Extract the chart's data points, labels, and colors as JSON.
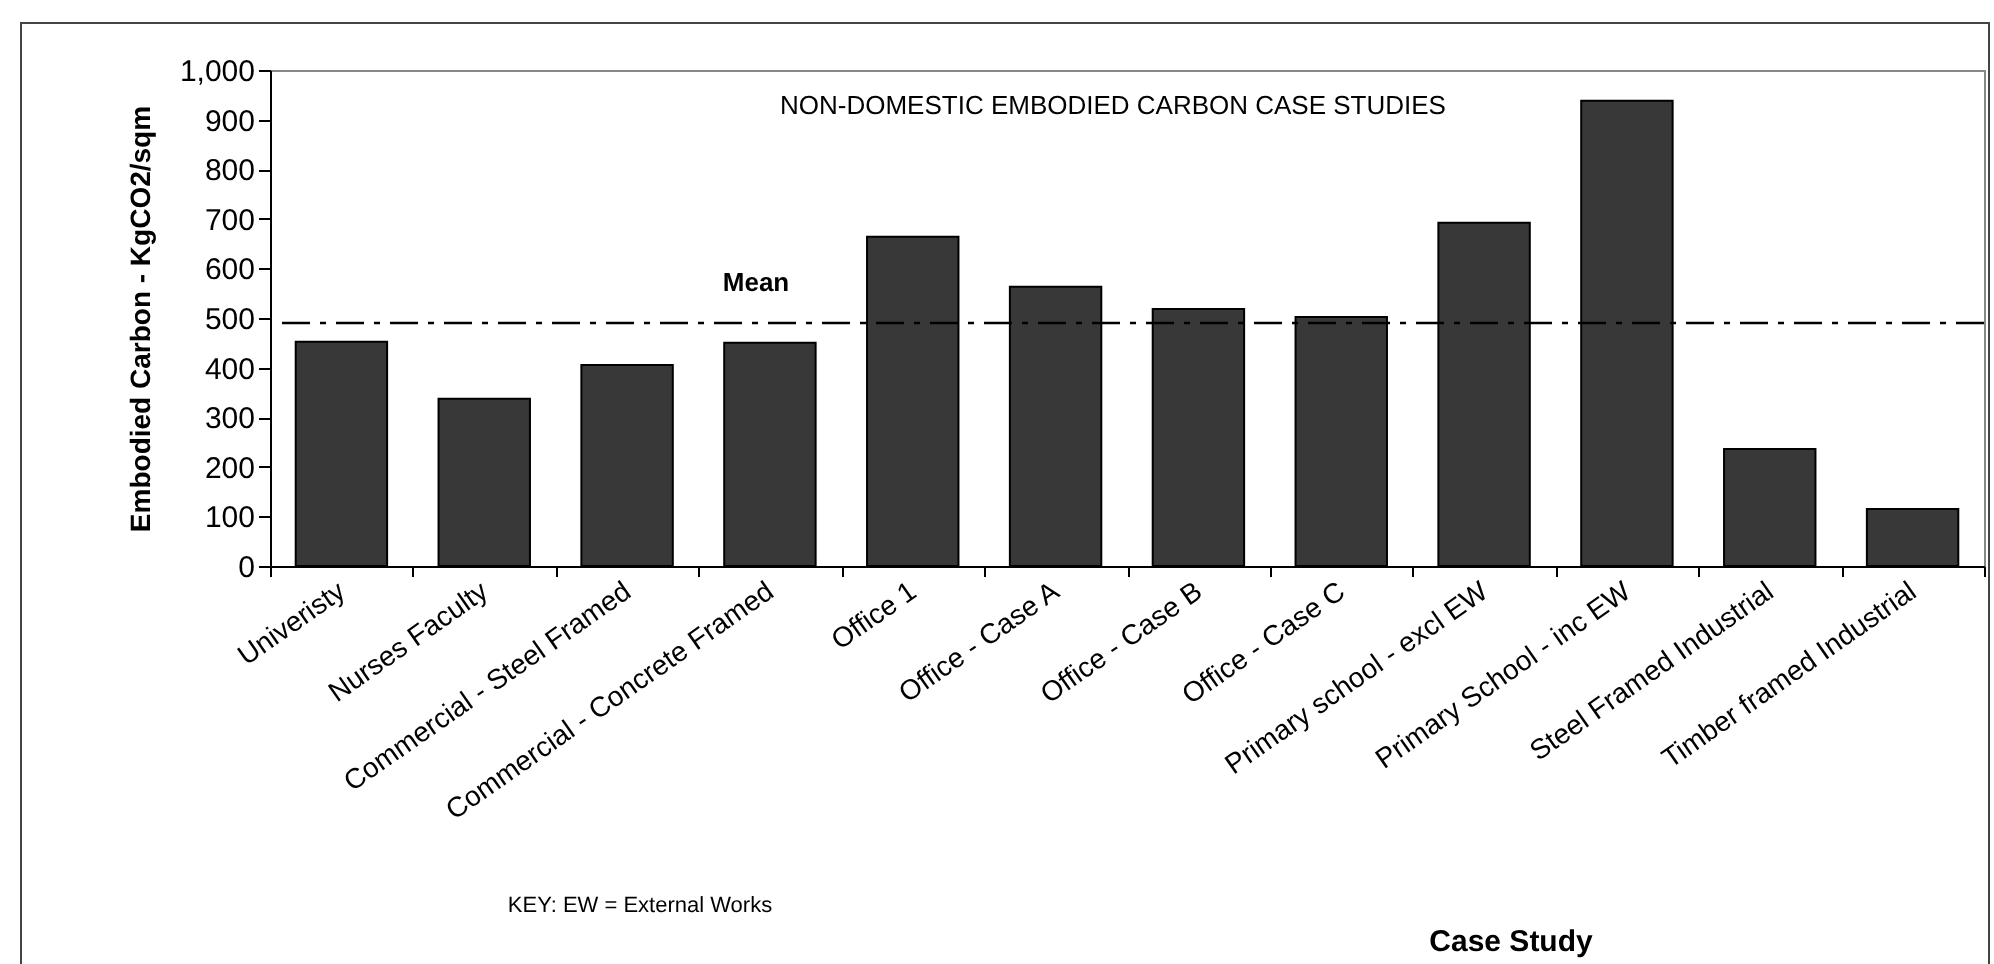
{
  "chart_data": {
    "type": "bar",
    "title": "NON-DOMESTIC EMBODIED CARBON CASE STUDIES",
    "xlabel": "Case Study",
    "ylabel": "Embodied Carbon - KgCO2/sqm",
    "categories": [
      "Univeristy",
      "Nurses Faculty",
      "Commercial - Steel Framed",
      "Commercial - Concrete Framed",
      "Office 1",
      "Office - Case A",
      "Office - Case B",
      "Office - Case C",
      "Primary school - excl EW",
      "Primary School - inc EW",
      "Steel Framed Industrial",
      "Timber framed Industrial"
    ],
    "values": [
      452,
      337,
      405,
      450,
      664,
      563,
      518,
      502,
      692,
      938,
      236,
      115
    ],
    "color": "#383838",
    "ylim": [
      0,
      1000
    ],
    "yticks": [
      0,
      100,
      200,
      300,
      400,
      500,
      600,
      700,
      800,
      900,
      {
        "value": 1000,
        "label": "1,000"
      }
    ],
    "ref_lines": [
      {
        "axis": "y",
        "value": 490,
        "label": "Mean",
        "line_style": "dashed",
        "color": "#000000"
      }
    ],
    "annotations": [
      "KEY: EW = External Works"
    ],
    "grid": false
  }
}
